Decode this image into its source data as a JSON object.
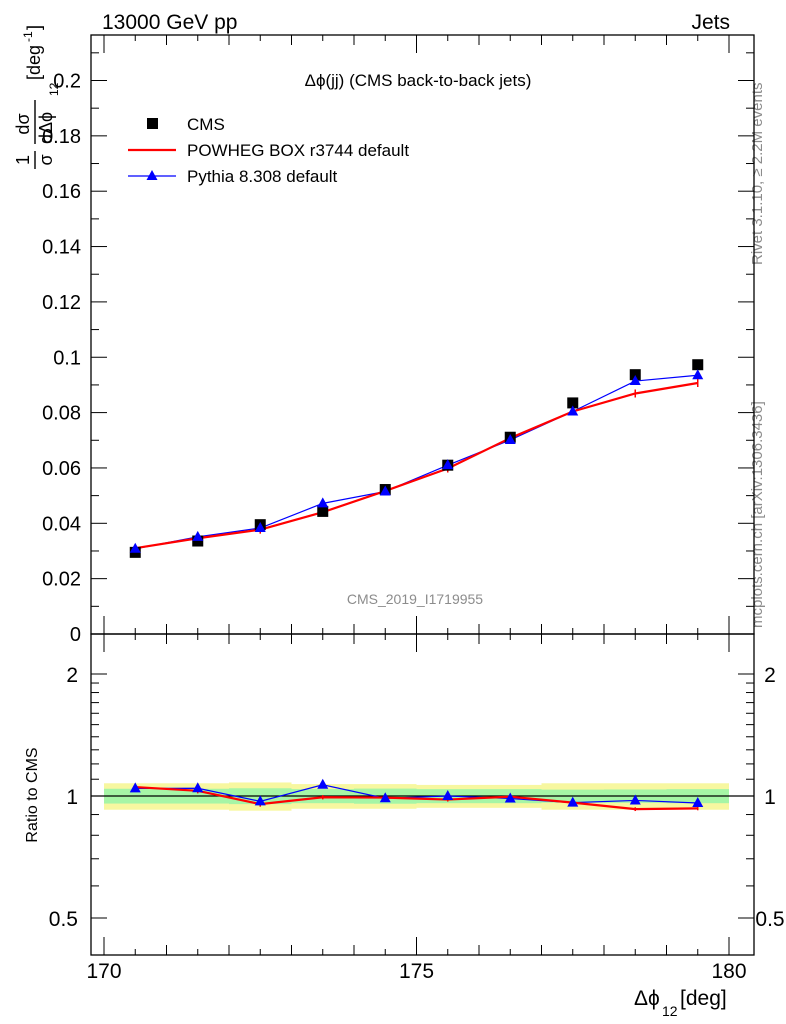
{
  "header": {
    "left": "13000 GeV pp",
    "right": "Jets"
  },
  "side_labels": {
    "rivet": "Rivet 3.1.10, ≥ 2.2M events",
    "mcplots": "mcplots.cern.ch [arXiv:1306.3436]"
  },
  "colors": {
    "cms": "#000000",
    "powheg": "#ff0000",
    "pythia": "#0000ff",
    "band_inner": "#a6f5a6",
    "band_outer": "#f7f7a0"
  },
  "chart_data": [
    {
      "type": "scatter",
      "panel": "main",
      "title": "Δϕ(jj) (CMS back-to-back jets)",
      "watermark": "CMS_2019_I1719955",
      "ylabel": {
        "frac_num": "1",
        "frac_den": "σ",
        "d_num": "dσ",
        "d_den": "dΔϕ",
        "d_den_sub": "12",
        "unit": "[deg",
        "unit_sup": "-1",
        "unit_close": "]"
      },
      "xlim": [
        170,
        180
      ],
      "ylim": [
        0,
        0.215
      ],
      "yticks": [
        0,
        0.02,
        0.04,
        0.06,
        0.08,
        0.1,
        0.12,
        0.14,
        0.16,
        0.18,
        0.2
      ],
      "ytick_labels": [
        "0",
        "0.02",
        "0.04",
        "0.06",
        "0.08",
        "0.1",
        "0.12",
        "0.14",
        "0.16",
        "0.18",
        "0.2"
      ],
      "legend_position": "top-left",
      "x": [
        170.5,
        171.5,
        172.5,
        173.5,
        174.5,
        175.5,
        176.5,
        177.5,
        178.5,
        179.5
      ],
      "series": [
        {
          "name": "CMS",
          "marker": "square",
          "color": "#000000",
          "values": [
            0.0295,
            0.0336,
            0.0395,
            0.0443,
            0.0522,
            0.061,
            0.0711,
            0.0835,
            0.0937,
            0.0973
          ]
        },
        {
          "name": "POWHEG BOX r3744 default",
          "marker": "line",
          "color": "#ff0000",
          "values": [
            0.031,
            0.0346,
            0.0377,
            0.044,
            0.0517,
            0.0598,
            0.0708,
            0.0804,
            0.0869,
            0.0907
          ]
        },
        {
          "name": "Pythia 8.308 default",
          "marker": "triangle",
          "color": "#0000ff",
          "values": [
            0.0308,
            0.0351,
            0.0383,
            0.0472,
            0.0515,
            0.061,
            0.0701,
            0.0804,
            0.0914,
            0.0935
          ]
        }
      ]
    },
    {
      "type": "line",
      "panel": "ratio",
      "ylabel": "Ratio to CMS",
      "xlabel": "Δϕ",
      "xlabel_sub": "12",
      "xlabel_unit": " [deg]",
      "xlim": [
        170,
        180
      ],
      "xticks": [
        170,
        175,
        180
      ],
      "xtick_labels": [
        "170",
        "175",
        "180"
      ],
      "ylim": [
        0.43,
        2.3
      ],
      "yscale": "log",
      "yticks": [
        0.5,
        1,
        2
      ],
      "ytick_labels": [
        "0.5",
        "1",
        "2"
      ],
      "x": [
        170.5,
        171.5,
        172.5,
        173.5,
        174.5,
        175.5,
        176.5,
        177.5,
        178.5,
        179.5
      ],
      "bands": {
        "inner": [
          0.042,
          0.042,
          0.045,
          0.04,
          0.043,
          0.04,
          0.04,
          0.037,
          0.038,
          0.04
        ],
        "outer": [
          0.075,
          0.075,
          0.08,
          0.07,
          0.07,
          0.065,
          0.065,
          0.075,
          0.075,
          0.075
        ]
      },
      "series": [
        {
          "name": "POWHEG BOX r3744 default",
          "color": "#ff0000",
          "values": [
            1.052,
            1.03,
            0.955,
            0.993,
            0.991,
            0.98,
            0.996,
            0.963,
            0.928,
            0.932
          ],
          "errors": [
            0.018,
            0.015,
            0.014,
            0.012,
            0.012,
            0.011,
            0.01,
            0.01,
            0.01,
            0.01
          ]
        },
        {
          "name": "Pythia 8.308 default",
          "color": "#0000ff",
          "values": [
            1.044,
            1.045,
            0.97,
            1.066,
            0.987,
            1.0,
            0.986,
            0.963,
            0.975,
            0.961
          ]
        }
      ]
    }
  ]
}
